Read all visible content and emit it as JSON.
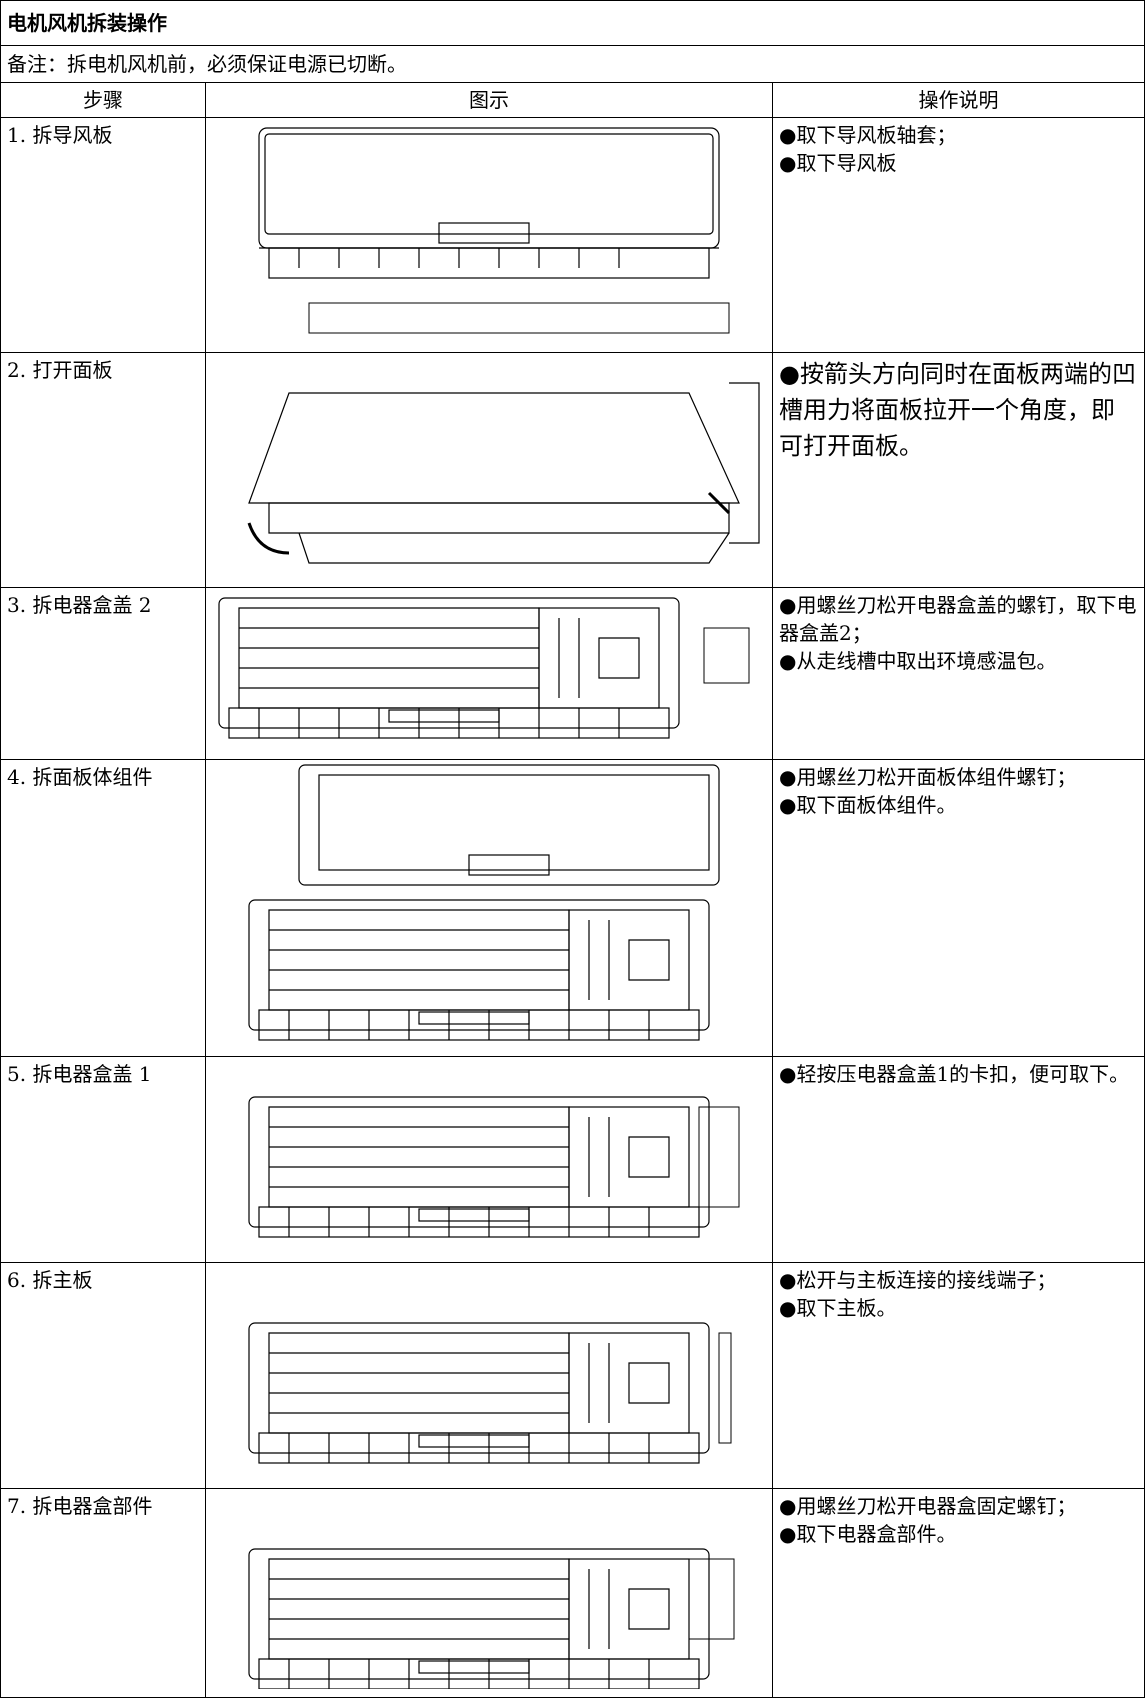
{
  "header": {
    "title": "电机风机拆装操作",
    "note": "备注：拆电机风机前，必须保证电源已切断。"
  },
  "table": {
    "headers": [
      "步骤",
      "图示",
      "操作说明"
    ],
    "rows": [
      {
        "step": "1. 拆导风板",
        "description": [
          "●取下导风板轴套；",
          "●取下导风板"
        ]
      },
      {
        "step": "2. 打开面板",
        "description": [
          "●按箭头方向同时在面板两端的凹槽用力将面板拉开一个角度，即可打开面板。"
        ]
      },
      {
        "step": "3. 拆电器盒盖 2",
        "description": [
          "●用螺丝刀松开电器盒盖的螺钉，取下电器盒盖2；",
          "●从走线槽中取出环境感温包。"
        ]
      },
      {
        "step": "4. 拆面板体组件",
        "description": [
          "●用螺丝刀松开面板体组件螺钉；",
          "●取下面板体组件。"
        ]
      },
      {
        "step": "5. 拆电器盒盖 1",
        "description": [
          "●轻按压电器盒盖1的卡扣，便可取下。"
        ]
      },
      {
        "step": "6. 拆主板",
        "description": [
          "●松开与主板连接的接线端子；",
          "●取下主板。"
        ]
      },
      {
        "step": "7. 拆电器盒部件",
        "description": [
          "●用螺丝刀松开电器盒固定螺钉；",
          "●取下电器盒部件。"
        ]
      }
    ]
  }
}
